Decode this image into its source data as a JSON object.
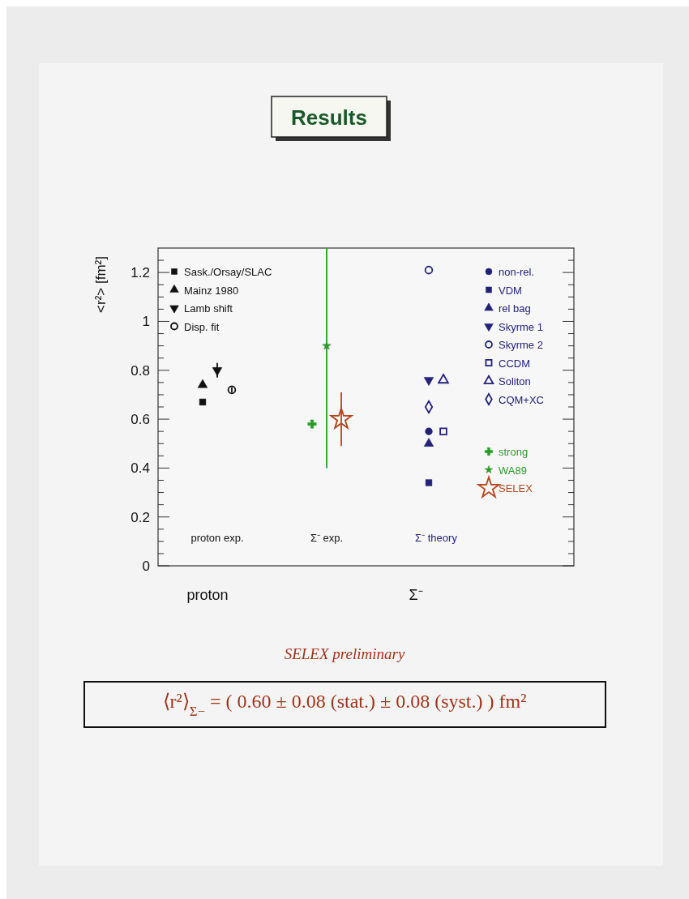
{
  "chart_data": {
    "type": "scatter",
    "title": "Results",
    "ylabel": "<r²> [fm²]",
    "categories": [
      "proton exp.",
      "Σ⁻ exp.",
      "Σ⁻ theory"
    ],
    "ylim": [
      0,
      1.3
    ],
    "yticks": [
      0,
      {
        "value": 0.05,
        "label": null
      },
      {
        "value": 0.1,
        "label": null
      },
      {
        "value": 0.15,
        "label": null
      },
      0.2,
      {
        "value": 0.25,
        "label": null
      },
      {
        "value": 0.3,
        "label": null
      },
      {
        "value": 0.35,
        "label": null
      },
      0.4,
      {
        "value": 0.45,
        "label": null
      },
      {
        "value": 0.5,
        "label": null
      },
      {
        "value": 0.55,
        "label": null
      },
      0.6,
      {
        "value": 0.65,
        "label": null
      },
      {
        "value": 0.7,
        "label": null
      },
      {
        "value": 0.75,
        "label": null
      },
      0.8,
      {
        "value": 0.85,
        "label": null
      },
      {
        "value": 0.9,
        "label": null
      },
      {
        "value": 0.95,
        "label": null
      },
      1,
      {
        "value": 1.05,
        "label": null
      },
      {
        "value": 1.1,
        "label": null
      },
      {
        "value": 1.15,
        "label": null
      },
      1.2,
      {
        "value": 1.25,
        "label": null
      }
    ],
    "grid": false,
    "legend": "top",
    "series": [
      {
        "name": "Sask./Orsay/SLAC",
        "color": "#111111",
        "marker": "square",
        "x": [
          "proton exp."
        ],
        "values": [
          0.67
        ],
        "errors": [
          0.01
        ]
      },
      {
        "name": "Mainz 1980",
        "color": "#111111",
        "marker": "triangle",
        "x": [
          "proton exp."
        ],
        "values": [
          0.74
        ]
      },
      {
        "name": "Lamb shift",
        "color": "#111111",
        "marker": "triangle-down",
        "x": [
          "proton exp."
        ],
        "values": [
          0.8
        ],
        "errors": [
          0.03
        ]
      },
      {
        "name": "Disp. fit",
        "color": "#111111",
        "marker": "circle-open",
        "x": [
          "proton exp."
        ],
        "values": [
          0.72
        ],
        "errors": [
          0.01
        ]
      },
      {
        "name": "non-rel.",
        "color": "#22227a",
        "marker": "circle",
        "x": [
          "Σ⁻ theory"
        ],
        "values": [
          0.55
        ]
      },
      {
        "name": "VDM",
        "color": "#22227a",
        "marker": "square",
        "x": [
          "Σ⁻ theory"
        ],
        "values": [
          0.34
        ]
      },
      {
        "name": "rel bag",
        "color": "#22227a",
        "marker": "triangle",
        "x": [
          "Σ⁻ theory"
        ],
        "values": [
          0.5
        ]
      },
      {
        "name": "Skyrme 1",
        "color": "#22227a",
        "marker": "triangle-down",
        "x": [
          "Σ⁻ theory"
        ],
        "values": [
          0.76
        ]
      },
      {
        "name": "Skyrme 2",
        "color": "#22227a",
        "marker": "circle-open",
        "x": [
          "Σ⁻ theory"
        ],
        "values": [
          1.21
        ]
      },
      {
        "name": "CCDM",
        "color": "#22227a",
        "marker": "square-open",
        "x": [
          "Σ⁻ theory"
        ],
        "values": [
          0.55
        ]
      },
      {
        "name": "Soliton",
        "color": "#22227a",
        "marker": "triangle-open",
        "x": [
          "Σ⁻ theory"
        ],
        "values": [
          0.76
        ]
      },
      {
        "name": "CQM+XC",
        "color": "#22227a",
        "marker": "diamond-open",
        "x": [
          "Σ⁻ theory"
        ],
        "values": [
          0.65
        ]
      },
      {
        "name": "strong",
        "color": "#2a9a2a",
        "marker": "cross",
        "x": [
          "Σ⁻ exp."
        ],
        "values": [
          0.58
        ]
      },
      {
        "name": "WA89",
        "color": "#2a9a2a",
        "marker": "star",
        "x": [
          "Σ⁻ exp."
        ],
        "values": [
          0.9
        ],
        "errors": [
          [
            0.4,
            1.3
          ]
        ]
      },
      {
        "name": "SELEX",
        "color": "#b5441e",
        "marker": "star-open",
        "x": [
          "Σ⁻ exp."
        ],
        "values": [
          0.6
        ],
        "errors": [
          0.11
        ]
      }
    ],
    "annotations": [
      "proton",
      "Σ⁻",
      "SELEX preliminary",
      "⟨r²⟩$_{Σ−}$ = ( 0.60 ± 0.08 (stat.) ± 0.08 (syst.) ) fm²"
    ]
  }
}
